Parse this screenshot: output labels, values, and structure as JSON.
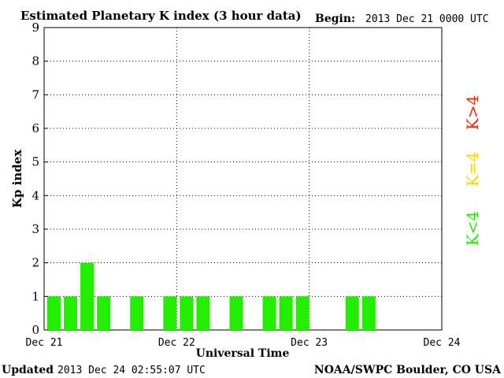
{
  "header": {
    "title": "Estimated Planetary K index (3 hour data)",
    "begin_label": "Begin:",
    "begin_value": "2013 Dec 21 0000 UTC"
  },
  "footer": {
    "updated_label": "Updated",
    "updated_value": "2013 Dec 24 02:55:07 UTC",
    "source": "NOAA/SWPC Boulder, CO USA"
  },
  "legend": {
    "items": [
      {
        "label": "K>4",
        "color": "#ff2000"
      },
      {
        "label": "K=4",
        "color": "#ffd400"
      },
      {
        "label": "K<4",
        "color": "#22ee00"
      }
    ]
  },
  "chart_data": {
    "type": "bar",
    "title": "Estimated Planetary K index (3 hour data)",
    "xlabel": "Universal Time",
    "ylabel": "Kp index",
    "ylim": [
      0,
      9
    ],
    "yticks": [
      "0",
      "1",
      "2",
      "3",
      "4",
      "5",
      "6",
      "7",
      "8",
      "9"
    ],
    "xticks": [
      "Dec 21",
      "Dec 22",
      "Dec 23",
      "Dec 24"
    ],
    "grid": true,
    "interval_hours": 3,
    "values": [
      1,
      1,
      2,
      1,
      0,
      1,
      0,
      1,
      1,
      1,
      0,
      1,
      0,
      1,
      1,
      1,
      0,
      0,
      1,
      1
    ],
    "bar_color": "#22ee00"
  }
}
